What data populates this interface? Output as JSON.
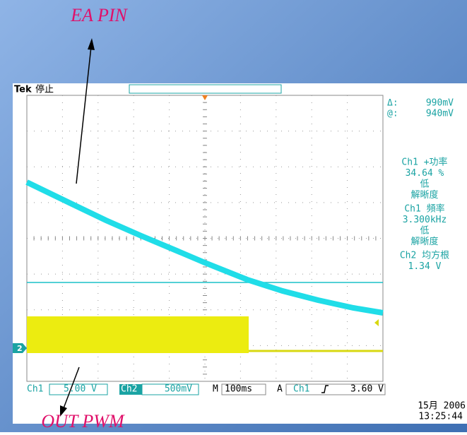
{
  "annotations": {
    "top": "EA PIN",
    "bottom": "OUT PWM"
  },
  "scope": {
    "brand": "Tek",
    "status": "停止",
    "cursor": [
      {
        "label": "Δ:",
        "value": "990mV"
      },
      {
        "label": "@:",
        "value": "940mV"
      }
    ],
    "measurements": [
      "Ch1 +功率",
      "34.64 %",
      "低",
      "解晰度",
      "Ch1 頻率",
      "3.300kHz",
      "低",
      "解晰度",
      "Ch2 均方根",
      "1.34 V"
    ],
    "channel_marker": "2",
    "bottom_bar": {
      "ch1": "Ch1",
      "ch1_scale": "5.00 V",
      "ch2": "Ch2",
      "ch2_scale": "500mV",
      "m": "M",
      "timebase": "100ms",
      "a": "A",
      "trig_ch": "Ch1",
      "trig_level": "3.60 V"
    },
    "date": "15月 2006",
    "time": "13:25:44"
  }
}
